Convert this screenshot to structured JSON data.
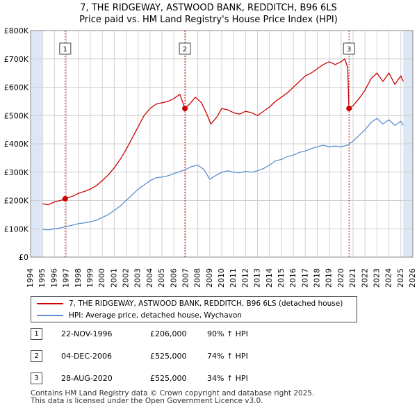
{
  "chart_data": {
    "type": "line",
    "title": "7, THE RIDGEWAY, ASTWOOD BANK, REDDITCH, B96 6LS",
    "subtitle": "Price paid vs. HM Land Registry's House Price Index (HPI)",
    "xlim": [
      1994,
      2026
    ],
    "ylim": [
      0,
      800000
    ],
    "x_ticks": [
      "1994",
      "1995",
      "1996",
      "1997",
      "1998",
      "1999",
      "2000",
      "2001",
      "2002",
      "2003",
      "2004",
      "2005",
      "2006",
      "2007",
      "2008",
      "2009",
      "2010",
      "2011",
      "2012",
      "2013",
      "2014",
      "2015",
      "2016",
      "2017",
      "2018",
      "2019",
      "2020",
      "2021",
      "2022",
      "2023",
      "2024",
      "2025",
      "2026"
    ],
    "y_ticks": [
      {
        "value": 0,
        "label": "£0"
      },
      {
        "value": 100000,
        "label": "£100K"
      },
      {
        "value": 200000,
        "label": "£200K"
      },
      {
        "value": 300000,
        "label": "£300K"
      },
      {
        "value": 400000,
        "label": "£400K"
      },
      {
        "value": 500000,
        "label": "£500K"
      },
      {
        "value": 600000,
        "label": "£600K"
      },
      {
        "value": 700000,
        "label": "£700K"
      },
      {
        "value": 800000,
        "label": "£800K"
      }
    ],
    "data_range": [
      1995,
      2025.2
    ],
    "series": [
      {
        "name": "7, THE RIDGEWAY, ASTWOOD BANK, REDDITCH, B96 6LS (detached house)",
        "color": "#cc0000",
        "points": [
          [
            1995.0,
            188000
          ],
          [
            1995.5,
            185000
          ],
          [
            1996.0,
            195000
          ],
          [
            1996.5,
            200000
          ],
          [
            1996.9,
            206000
          ],
          [
            1997.5,
            215000
          ],
          [
            1998.0,
            225000
          ],
          [
            1998.5,
            232000
          ],
          [
            1999.0,
            240000
          ],
          [
            1999.5,
            252000
          ],
          [
            2000.0,
            270000
          ],
          [
            2000.5,
            290000
          ],
          [
            2001.0,
            315000
          ],
          [
            2001.5,
            345000
          ],
          [
            2002.0,
            380000
          ],
          [
            2002.5,
            420000
          ],
          [
            2003.0,
            460000
          ],
          [
            2003.5,
            500000
          ],
          [
            2004.0,
            525000
          ],
          [
            2004.5,
            540000
          ],
          [
            2005.0,
            545000
          ],
          [
            2005.5,
            550000
          ],
          [
            2006.0,
            560000
          ],
          [
            2006.5,
            575000
          ],
          [
            2006.92,
            525000
          ],
          [
            2007.3,
            540000
          ],
          [
            2007.8,
            565000
          ],
          [
            2008.3,
            545000
          ],
          [
            2008.7,
            510000
          ],
          [
            2009.1,
            470000
          ],
          [
            2009.6,
            495000
          ],
          [
            2010.0,
            525000
          ],
          [
            2010.5,
            520000
          ],
          [
            2011.0,
            510000
          ],
          [
            2011.5,
            505000
          ],
          [
            2012.0,
            515000
          ],
          [
            2012.5,
            510000
          ],
          [
            2013.0,
            500000
          ],
          [
            2013.5,
            515000
          ],
          [
            2014.0,
            530000
          ],
          [
            2014.5,
            550000
          ],
          [
            2015.0,
            565000
          ],
          [
            2015.5,
            580000
          ],
          [
            2016.0,
            600000
          ],
          [
            2016.5,
            620000
          ],
          [
            2017.0,
            640000
          ],
          [
            2017.5,
            650000
          ],
          [
            2018.0,
            665000
          ],
          [
            2018.5,
            680000
          ],
          [
            2019.0,
            690000
          ],
          [
            2019.5,
            680000
          ],
          [
            2020.0,
            690000
          ],
          [
            2020.3,
            700000
          ],
          [
            2020.55,
            670000
          ],
          [
            2020.65,
            525000
          ],
          [
            2021.0,
            535000
          ],
          [
            2021.5,
            560000
          ],
          [
            2022.0,
            590000
          ],
          [
            2022.5,
            630000
          ],
          [
            2023.0,
            650000
          ],
          [
            2023.5,
            620000
          ],
          [
            2024.0,
            650000
          ],
          [
            2024.5,
            610000
          ],
          [
            2025.0,
            640000
          ],
          [
            2025.2,
            620000
          ]
        ]
      },
      {
        "name": "HPI: Average price, detached house, Wychavon",
        "color": "#5b8fd0",
        "points": [
          [
            1995.0,
            98000
          ],
          [
            1995.5,
            96000
          ],
          [
            1996.0,
            100000
          ],
          [
            1996.5,
            103000
          ],
          [
            1997.0,
            108000
          ],
          [
            1997.5,
            113000
          ],
          [
            1998.0,
            118000
          ],
          [
            1998.5,
            121000
          ],
          [
            1999.0,
            125000
          ],
          [
            1999.5,
            130000
          ],
          [
            2000.0,
            140000
          ],
          [
            2000.5,
            150000
          ],
          [
            2001.0,
            165000
          ],
          [
            2001.5,
            180000
          ],
          [
            2002.0,
            200000
          ],
          [
            2002.5,
            220000
          ],
          [
            2003.0,
            240000
          ],
          [
            2003.5,
            255000
          ],
          [
            2004.0,
            270000
          ],
          [
            2004.5,
            280000
          ],
          [
            2005.0,
            283000
          ],
          [
            2005.5,
            287000
          ],
          [
            2006.0,
            295000
          ],
          [
            2006.5,
            302000
          ],
          [
            2007.0,
            310000
          ],
          [
            2007.5,
            320000
          ],
          [
            2008.0,
            325000
          ],
          [
            2008.5,
            310000
          ],
          [
            2009.0,
            275000
          ],
          [
            2009.5,
            288000
          ],
          [
            2010.0,
            300000
          ],
          [
            2010.5,
            305000
          ],
          [
            2011.0,
            300000
          ],
          [
            2011.5,
            298000
          ],
          [
            2012.0,
            303000
          ],
          [
            2012.5,
            300000
          ],
          [
            2013.0,
            305000
          ],
          [
            2013.5,
            313000
          ],
          [
            2014.0,
            325000
          ],
          [
            2014.5,
            340000
          ],
          [
            2015.0,
            345000
          ],
          [
            2015.5,
            355000
          ],
          [
            2016.0,
            360000
          ],
          [
            2016.5,
            370000
          ],
          [
            2017.0,
            375000
          ],
          [
            2017.5,
            383000
          ],
          [
            2018.0,
            390000
          ],
          [
            2018.5,
            395000
          ],
          [
            2019.0,
            390000
          ],
          [
            2019.5,
            392000
          ],
          [
            2020.0,
            390000
          ],
          [
            2020.5,
            395000
          ],
          [
            2021.0,
            410000
          ],
          [
            2021.5,
            430000
          ],
          [
            2022.0,
            450000
          ],
          [
            2022.5,
            475000
          ],
          [
            2023.0,
            490000
          ],
          [
            2023.5,
            470000
          ],
          [
            2024.0,
            485000
          ],
          [
            2024.5,
            465000
          ],
          [
            2025.0,
            480000
          ],
          [
            2025.2,
            465000
          ]
        ]
      }
    ],
    "sales": [
      {
        "num": "1",
        "x": 1996.9,
        "price": 206000
      },
      {
        "num": "2",
        "x": 2006.92,
        "price": 525000
      },
      {
        "num": "3",
        "x": 2020.66,
        "price": 525000
      }
    ]
  },
  "legend": {
    "property": "7, THE RIDGEWAY, ASTWOOD BANK, REDDITCH, B96 6LS (detached house)",
    "hpi": "HPI: Average price, detached house, Wychavon"
  },
  "sales_table": [
    {
      "num": "1",
      "date": "22-NOV-1996",
      "price": "£206,000",
      "hpi": "90% ↑ HPI"
    },
    {
      "num": "2",
      "date": "04-DEC-2006",
      "price": "£525,000",
      "hpi": "74% ↑ HPI"
    },
    {
      "num": "3",
      "date": "28-AUG-2020",
      "price": "£525,000",
      "hpi": "34% ↑ HPI"
    }
  ],
  "footer": {
    "line1": "Contains HM Land Registry data © Crown copyright and database right 2025.",
    "line2": "This data is licensed under the Open Government Licence v3.0."
  },
  "colors": {
    "property": "#cc0000",
    "hpi": "#5b8fd0",
    "shade": "#dde6f4",
    "grid": "#d0d0d0"
  }
}
